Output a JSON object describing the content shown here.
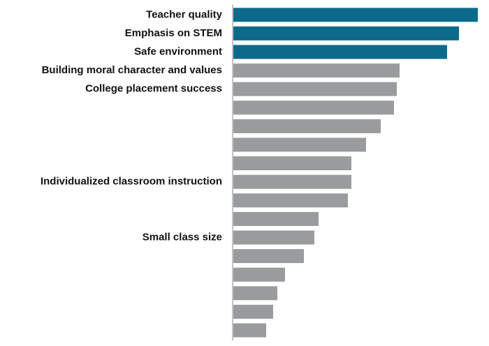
{
  "chart_data": {
    "type": "bar",
    "orientation": "horizontal",
    "categories": [
      "Teacher quality",
      "Emphasis on STEM",
      "Safe environment",
      "Building moral character and values",
      "College placement success",
      null,
      null,
      null,
      null,
      "Individualized classroom instruction",
      null,
      null,
      "Small class size",
      null,
      null,
      null,
      null,
      null
    ],
    "values": [
      350,
      323,
      306,
      238,
      234,
      230,
      211,
      190,
      169,
      169,
      164,
      122,
      116,
      101,
      74,
      63,
      57,
      47
    ],
    "colors": [
      "#0e6a8a",
      "#0e6a8a",
      "#0e6a8a",
      "#9a9b9d",
      "#9a9b9d",
      "#9a9b9d",
      "#9a9b9d",
      "#9a9b9d",
      "#9a9b9d",
      "#9a9b9d",
      "#9a9b9d",
      "#9a9b9d",
      "#9a9b9d",
      "#9a9b9d",
      "#9a9b9d",
      "#9a9b9d",
      "#9a9b9d",
      "#9a9b9d"
    ]
  }
}
